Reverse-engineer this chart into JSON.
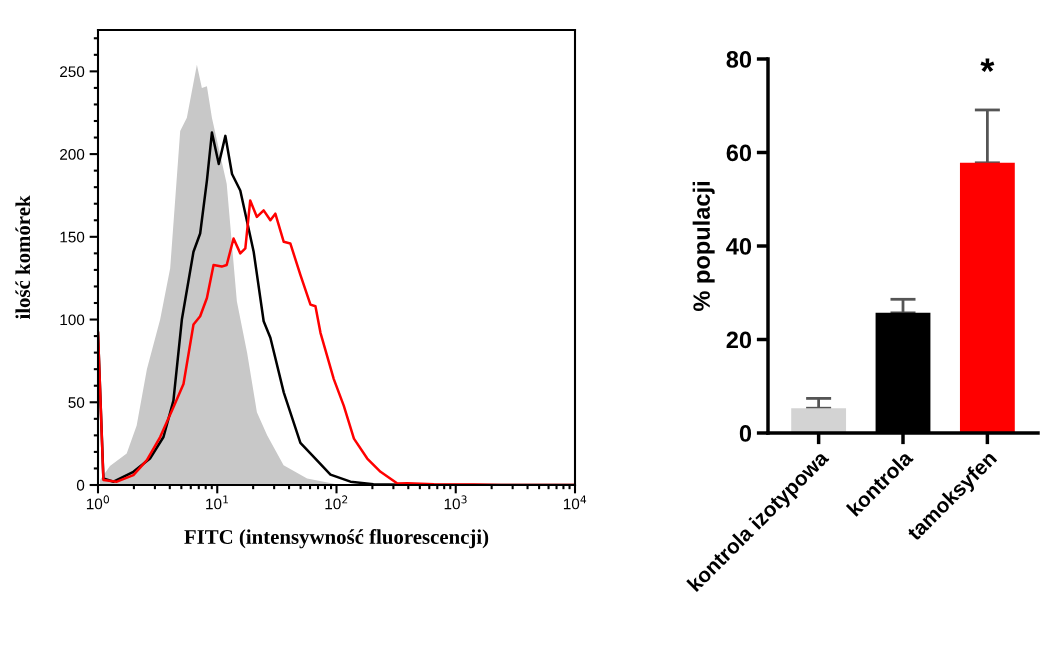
{
  "chart_data": [
    {
      "type": "line",
      "xlabel": "FITC (intensywność fluorescencji)",
      "ylabel": "ilość komórek",
      "log": "x",
      "grid": false,
      "xlim": [
        1,
        10000
      ],
      "ylim": [
        0,
        275
      ],
      "xticks": [
        {
          "value": 1,
          "label": "10$^{0}$"
        },
        {
          "value": 10,
          "label": "10$^{1}$"
        },
        {
          "value": 100,
          "label": "10$^{2}$"
        },
        {
          "value": 1000,
          "label": "10$^{3}$"
        },
        {
          "value": 10000,
          "label": "10$^{4}$"
        }
      ],
      "yticks": [
        0,
        50,
        100,
        150,
        200,
        250
      ],
      "series": [
        {
          "type": "area",
          "color": "#c8c8c8",
          "x": [
            1.04,
            1.26,
            1.74,
            2.11,
            2.57,
            3.32,
            4.03,
            4.89,
            5.56,
            6.75,
            7.43,
            8.19,
            9.02,
            12.0,
            14.6,
            17.8,
            21.5,
            26.2,
            36,
            56.7,
            100,
            200
          ],
          "values": [
            3,
            11.5,
            19,
            36,
            70,
            100,
            131,
            214,
            222,
            254,
            240,
            241,
            222,
            182,
            111,
            80,
            44,
            30,
            12,
            4,
            0.5,
            0
          ]
        },
        {
          "type": "line",
          "color": "#000000",
          "x": [
            1.0,
            1.11,
            1.35,
            1.98,
            2.73,
            3.54,
            4.29,
            5.05,
            6.32,
            7.19,
            8.19,
            9.02,
            10.3,
            11.7,
            13.3,
            15.6,
            20.2,
            24.5,
            27.9,
            36.1,
            49.8,
            64.4,
            89,
            131,
            204,
            500,
            10000
          ],
          "values": [
            92,
            4,
            2,
            8,
            16,
            29,
            51,
            100,
            141,
            152,
            184,
            213,
            194,
            211,
            188,
            178,
            141,
            99,
            89,
            56,
            25.5,
            17,
            6.3,
            2,
            0.5,
            0,
            0
          ]
        },
        {
          "type": "line",
          "color": "#ff0000",
          "x": [
            1.0,
            1.11,
            1.44,
            1.98,
            2.57,
            3.32,
            4.29,
            5.21,
            6.32,
            7.19,
            8.19,
            9.31,
            10.9,
            12.0,
            13.7,
            15.6,
            17.2,
            18.9,
            21.5,
            24.5,
            27.9,
            30.7,
            36.1,
            41.0,
            49.8,
            60.5,
            66.6,
            73.4,
            94.9,
            115,
            140,
            181,
            234,
            324,
            393,
            658,
            1413,
            2400,
            10000
          ],
          "values": [
            92,
            3,
            2,
            6,
            15,
            29,
            47,
            61,
            97,
            102,
            113,
            133,
            132,
            133,
            149,
            140,
            143,
            172,
            162,
            166,
            160,
            164,
            147,
            146,
            127,
            109,
            108,
            92,
            64,
            48,
            28,
            16,
            8,
            0.9,
            1,
            0.5,
            0.3,
            0,
            0
          ]
        }
      ]
    },
    {
      "type": "bar",
      "ylabel": "% populacji",
      "grid": false,
      "categories": [
        "kontrola izotypowa",
        "kontrola",
        "tamoksyfen"
      ],
      "values": [
        5.3,
        25.7,
        57.8
      ],
      "colors": [
        "#d3d3d3",
        "#000000",
        "#ff0000"
      ],
      "errors": [
        [
          5.3,
          7.4
        ],
        [
          25.7,
          28.6
        ],
        [
          57.8,
          69.1
        ]
      ],
      "ylim": [
        0,
        80
      ],
      "yticks": [
        0,
        20,
        40,
        60,
        80
      ],
      "annotations": [
        "*"
      ]
    }
  ]
}
